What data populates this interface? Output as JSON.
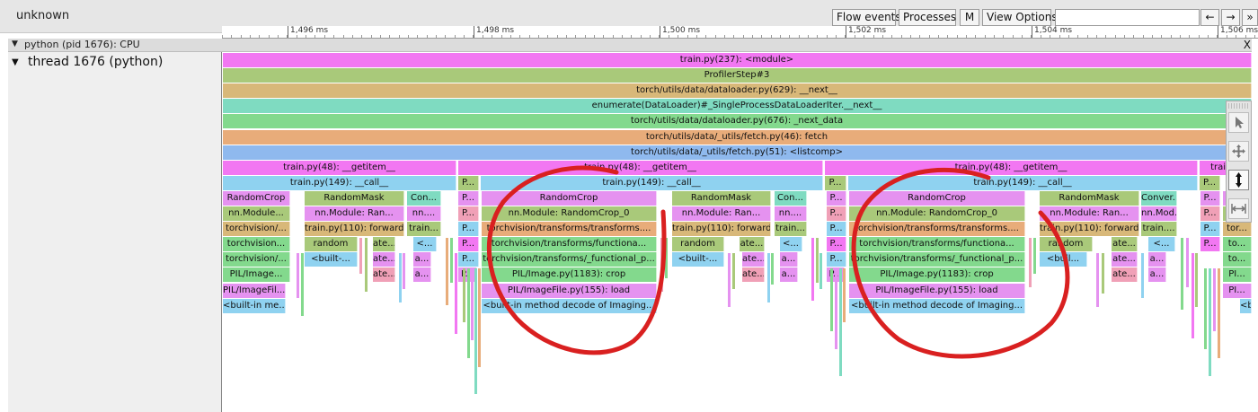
{
  "app_title": "unknown",
  "toolbar": {
    "flow_events": "Flow events",
    "processes": "Processes",
    "m": "M",
    "view_options": "View Options",
    "search_placeholder": "",
    "prev": "←",
    "next": "→",
    "more": "»"
  },
  "ruler": {
    "ticks": [
      {
        "label": "1,496 ms",
        "value": 1496
      },
      {
        "label": "1,498 ms",
        "value": 1498
      },
      {
        "label": "1,500 ms",
        "value": 1500
      },
      {
        "label": "1,502 ms",
        "value": 1502
      },
      {
        "label": "1,504 ms",
        "value": 1504
      },
      {
        "label": "1,506 ms",
        "value": 1506
      }
    ]
  },
  "process": {
    "toggle": "▼",
    "label": "python (pid 1676): CPU",
    "close": "X"
  },
  "thread": {
    "toggle": "▼",
    "label": "thread 1676 (python)"
  },
  "colors": {
    "magenta": "#f277f2",
    "olive": "#a9c97a",
    "tan": "#d8b879",
    "teal": "#7fdbc1",
    "green": "#83d98d",
    "orange": "#e8ac7a",
    "blue": "#8fb9ee",
    "cyan": "#8fd2f0",
    "violet": "#e592f0",
    "pink": "#f0a0b7",
    "annotation": "#d92020"
  },
  "slices": [
    {
      "row": 0,
      "from": 0,
      "to": 1145,
      "c": "magenta",
      "t": "train.py(237): <module>"
    },
    {
      "row": 1,
      "from": 0,
      "to": 1145,
      "c": "olive",
      "t": "ProfilerStep#3"
    },
    {
      "row": 2,
      "from": 0,
      "to": 1145,
      "c": "tan",
      "t": "torch/utils/data/dataloader.py(629): __next__"
    },
    {
      "row": 3,
      "from": 0,
      "to": 1145,
      "c": "teal",
      "t": "enumerate(DataLoader)#_SingleProcessDataLoaderIter.__next__"
    },
    {
      "row": 4,
      "from": 0,
      "to": 1145,
      "c": "green",
      "t": "torch/utils/data/dataloader.py(676): _next_data"
    },
    {
      "row": 5,
      "from": 0,
      "to": 1145,
      "c": "orange",
      "t": "torch/utils/data/_utils/fetch.py(46): fetch"
    },
    {
      "row": 6,
      "from": 0,
      "to": 1145,
      "c": "blue",
      "t": "torch/utils/data/_utils/fetch.py(51): <listcomp>"
    },
    {
      "row": 7,
      "from": 0,
      "to": 260,
      "c": "magenta",
      "t": "train.py(48): __getitem__"
    },
    {
      "row": 7,
      "from": 262,
      "to": 668,
      "c": "magenta",
      "t": "train.py(48): __getitem__"
    },
    {
      "row": 7,
      "from": 670,
      "to": 1085,
      "c": "magenta",
      "t": "train.py(48): __getitem__"
    },
    {
      "row": 7,
      "from": 1087,
      "to": 1145,
      "c": "magenta",
      "t": "train.p"
    },
    {
      "row": 8,
      "from": 0,
      "to": 260,
      "c": "cyan",
      "t": "train.py(149): __call__"
    },
    {
      "row": 8,
      "from": 262,
      "to": 285,
      "c": "olive",
      "t": "P..."
    },
    {
      "row": 8,
      "from": 287,
      "to": 668,
      "c": "cyan",
      "t": "train.py(149): __call__"
    },
    {
      "row": 8,
      "from": 670,
      "to": 694,
      "c": "olive",
      "t": "P..."
    },
    {
      "row": 8,
      "from": 696,
      "to": 1085,
      "c": "cyan",
      "t": "train.py(149): __call__"
    },
    {
      "row": 8,
      "from": 1087,
      "to": 1110,
      "c": "olive",
      "t": "P..."
    },
    {
      "row": 9,
      "from": 0,
      "to": 75,
      "c": "violet",
      "t": "RandomCrop"
    },
    {
      "row": 9,
      "from": 91,
      "to": 202,
      "c": "olive",
      "t": "RandomMask"
    },
    {
      "row": 9,
      "from": 205,
      "to": 243,
      "c": "teal",
      "t": "Con..."
    },
    {
      "row": 9,
      "from": 262,
      "to": 285,
      "c": "violet",
      "t": "P..."
    },
    {
      "row": 9,
      "from": 288,
      "to": 483,
      "c": "violet",
      "t": "RandomCrop"
    },
    {
      "row": 9,
      "from": 500,
      "to": 610,
      "c": "olive",
      "t": "RandomMask"
    },
    {
      "row": 9,
      "from": 614,
      "to": 650,
      "c": "teal",
      "t": "Con..."
    },
    {
      "row": 9,
      "from": 672,
      "to": 694,
      "c": "violet",
      "t": "P..."
    },
    {
      "row": 9,
      "from": 697,
      "to": 893,
      "c": "violet",
      "t": "RandomCrop"
    },
    {
      "row": 9,
      "from": 909,
      "to": 1020,
      "c": "olive",
      "t": "RandomMask"
    },
    {
      "row": 9,
      "from": 1022,
      "to": 1062,
      "c": "teal",
      "t": "Conver..."
    },
    {
      "row": 9,
      "from": 1088,
      "to": 1110,
      "c": "violet",
      "t": "P..."
    },
    {
      "row": 9,
      "from": 1113,
      "to": 1145,
      "c": "violet",
      "t": "Ra..."
    },
    {
      "row": 10,
      "from": 0,
      "to": 75,
      "c": "olive",
      "t": "nn.Module..."
    },
    {
      "row": 10,
      "from": 91,
      "to": 202,
      "c": "violet",
      "t": "nn.Module: Ran..."
    },
    {
      "row": 10,
      "from": 205,
      "to": 243,
      "c": "violet",
      "t": "nn...."
    },
    {
      "row": 10,
      "from": 262,
      "to": 285,
      "c": "pink",
      "t": "P..."
    },
    {
      "row": 10,
      "from": 288,
      "to": 483,
      "c": "olive",
      "t": "nn.Module: RandomCrop_0"
    },
    {
      "row": 10,
      "from": 500,
      "to": 610,
      "c": "violet",
      "t": "nn.Module: Ran..."
    },
    {
      "row": 10,
      "from": 614,
      "to": 650,
      "c": "violet",
      "t": "nn...."
    },
    {
      "row": 10,
      "from": 672,
      "to": 694,
      "c": "pink",
      "t": "P..."
    },
    {
      "row": 10,
      "from": 697,
      "to": 893,
      "c": "olive",
      "t": "nn.Module: RandomCrop_0"
    },
    {
      "row": 10,
      "from": 909,
      "to": 1020,
      "c": "violet",
      "t": "nn.Module: Ran..."
    },
    {
      "row": 10,
      "from": 1022,
      "to": 1062,
      "c": "violet",
      "t": "nn.Mod..."
    },
    {
      "row": 10,
      "from": 1088,
      "to": 1110,
      "c": "pink",
      "t": "P..."
    },
    {
      "row": 10,
      "from": 1113,
      "to": 1145,
      "c": "olive",
      "t": "nn..."
    },
    {
      "row": 11,
      "from": 0,
      "to": 75,
      "c": "tan",
      "t": "torchvision/..."
    },
    {
      "row": 11,
      "from": 91,
      "to": 202,
      "c": "tan",
      "t": "train.py(110): forward"
    },
    {
      "row": 11,
      "from": 205,
      "to": 243,
      "c": "olive",
      "t": "train..."
    },
    {
      "row": 11,
      "from": 262,
      "to": 285,
      "c": "cyan",
      "t": "P..."
    },
    {
      "row": 11,
      "from": 288,
      "to": 483,
      "c": "orange",
      "t": "torchvision/transforms/transforms...."
    },
    {
      "row": 11,
      "from": 500,
      "to": 610,
      "c": "tan",
      "t": "train.py(110): forward"
    },
    {
      "row": 11,
      "from": 614,
      "to": 650,
      "c": "olive",
      "t": "train..."
    },
    {
      "row": 11,
      "from": 672,
      "to": 694,
      "c": "cyan",
      "t": "P..."
    },
    {
      "row": 11,
      "from": 697,
      "to": 893,
      "c": "orange",
      "t": "torchvision/transforms/transforms...."
    },
    {
      "row": 11,
      "from": 909,
      "to": 1020,
      "c": "tan",
      "t": "train.py(110): forward"
    },
    {
      "row": 11,
      "from": 1022,
      "to": 1062,
      "c": "olive",
      "t": "train...."
    },
    {
      "row": 11,
      "from": 1088,
      "to": 1110,
      "c": "cyan",
      "t": "P..."
    },
    {
      "row": 11,
      "from": 1113,
      "to": 1145,
      "c": "tan",
      "t": "tor..."
    },
    {
      "row": 12,
      "from": 0,
      "to": 75,
      "c": "green",
      "t": "torchvision..."
    },
    {
      "row": 12,
      "from": 91,
      "to": 150,
      "c": "olive",
      "t": "random"
    },
    {
      "row": 12,
      "from": 167,
      "to": 192,
      "c": "olive",
      "t": "ate..."
    },
    {
      "row": 12,
      "from": 212,
      "to": 238,
      "c": "cyan",
      "t": "<..."
    },
    {
      "row": 12,
      "from": 262,
      "to": 285,
      "c": "magenta",
      "t": "P..."
    },
    {
      "row": 12,
      "from": 288,
      "to": 483,
      "c": "green",
      "t": "torchvision/transforms/functiona..."
    },
    {
      "row": 12,
      "from": 500,
      "to": 558,
      "c": "olive",
      "t": "random"
    },
    {
      "row": 12,
      "from": 575,
      "to": 603,
      "c": "olive",
      "t": "ate..."
    },
    {
      "row": 12,
      "from": 620,
      "to": 645,
      "c": "cyan",
      "t": "<..."
    },
    {
      "row": 12,
      "from": 672,
      "to": 694,
      "c": "magenta",
      "t": "P..."
    },
    {
      "row": 12,
      "from": 697,
      "to": 893,
      "c": "green",
      "t": "torchvision/transforms/functiona..."
    },
    {
      "row": 12,
      "from": 909,
      "to": 968,
      "c": "olive",
      "t": "random"
    },
    {
      "row": 12,
      "from": 989,
      "to": 1018,
      "c": "olive",
      "t": "ate..."
    },
    {
      "row": 12,
      "from": 1030,
      "to": 1060,
      "c": "cyan",
      "t": "<..."
    },
    {
      "row": 12,
      "from": 1088,
      "to": 1110,
      "c": "magenta",
      "t": "P..."
    },
    {
      "row": 12,
      "from": 1113,
      "to": 1145,
      "c": "green",
      "t": "to..."
    },
    {
      "row": 13,
      "from": 0,
      "to": 75,
      "c": "green",
      "t": "torchvision/..."
    },
    {
      "row": 13,
      "from": 91,
      "to": 150,
      "c": "cyan",
      "t": "<built-..."
    },
    {
      "row": 13,
      "from": 167,
      "to": 192,
      "c": "violet",
      "t": "ate..."
    },
    {
      "row": 13,
      "from": 212,
      "to": 232,
      "c": "violet",
      "t": "a..."
    },
    {
      "row": 13,
      "from": 262,
      "to": 285,
      "c": "cyan",
      "t": "P..."
    },
    {
      "row": 13,
      "from": 288,
      "to": 483,
      "c": "green",
      "t": "torchvision/transforms/_functional_p..."
    },
    {
      "row": 13,
      "from": 500,
      "to": 558,
      "c": "cyan",
      "t": "<built-..."
    },
    {
      "row": 13,
      "from": 578,
      "to": 603,
      "c": "violet",
      "t": "ate..."
    },
    {
      "row": 13,
      "from": 620,
      "to": 640,
      "c": "violet",
      "t": "a..."
    },
    {
      "row": 13,
      "from": 672,
      "to": 694,
      "c": "cyan",
      "t": "P..."
    },
    {
      "row": 13,
      "from": 697,
      "to": 893,
      "c": "green",
      "t": "torchvision/transforms/_functional_p..."
    },
    {
      "row": 13,
      "from": 909,
      "to": 962,
      "c": "cyan",
      "t": "<buil..."
    },
    {
      "row": 13,
      "from": 989,
      "to": 1018,
      "c": "violet",
      "t": "ate..."
    },
    {
      "row": 13,
      "from": 1030,
      "to": 1050,
      "c": "violet",
      "t": "a..."
    },
    {
      "row": 13,
      "from": 1113,
      "to": 1145,
      "c": "green",
      "t": "to..."
    },
    {
      "row": 14,
      "from": 0,
      "to": 75,
      "c": "green",
      "t": "PIL/Image..."
    },
    {
      "row": 14,
      "from": 167,
      "to": 192,
      "c": "pink",
      "t": "ate..."
    },
    {
      "row": 14,
      "from": 212,
      "to": 232,
      "c": "violet",
      "t": "a..."
    },
    {
      "row": 14,
      "from": 262,
      "to": 283,
      "c": "violet",
      "t": "P..."
    },
    {
      "row": 14,
      "from": 288,
      "to": 483,
      "c": "green",
      "t": "PIL/Image.py(1183): crop"
    },
    {
      "row": 14,
      "from": 578,
      "to": 603,
      "c": "pink",
      "t": "ate..."
    },
    {
      "row": 14,
      "from": 620,
      "to": 640,
      "c": "violet",
      "t": "a..."
    },
    {
      "row": 14,
      "from": 672,
      "to": 692,
      "c": "violet",
      "t": "P..."
    },
    {
      "row": 14,
      "from": 697,
      "to": 893,
      "c": "green",
      "t": "PIL/Image.py(1183): crop"
    },
    {
      "row": 14,
      "from": 989,
      "to": 1018,
      "c": "pink",
      "t": "ate..."
    },
    {
      "row": 14,
      "from": 1030,
      "to": 1050,
      "c": "violet",
      "t": "a..."
    },
    {
      "row": 14,
      "from": 1113,
      "to": 1145,
      "c": "green",
      "t": "PI..."
    },
    {
      "row": 15,
      "from": 0,
      "to": 70,
      "c": "violet",
      "t": "PIL/ImageFil..."
    },
    {
      "row": 15,
      "from": 288,
      "to": 483,
      "c": "violet",
      "t": "PIL/ImageFile.py(155): load"
    },
    {
      "row": 15,
      "from": 697,
      "to": 893,
      "c": "violet",
      "t": "PIL/ImageFile.py(155): load"
    },
    {
      "row": 15,
      "from": 1113,
      "to": 1145,
      "c": "violet",
      "t": "PI..."
    },
    {
      "row": 16,
      "from": 0,
      "to": 70,
      "c": "cyan",
      "t": "<built-in me..."
    },
    {
      "row": 16,
      "from": 288,
      "to": 483,
      "c": "cyan",
      "t": "<built-in method decode of Imaging..."
    },
    {
      "row": 16,
      "from": 697,
      "to": 893,
      "c": "cyan",
      "t": "<built-in method decode of Imaging..."
    },
    {
      "row": 16,
      "from": 1132,
      "to": 1145,
      "c": "cyan",
      "t": "<b"
    }
  ],
  "stalactites": [
    {
      "x": 82,
      "top": 282,
      "h": 50,
      "c": "violet"
    },
    {
      "x": 87,
      "top": 282,
      "h": 70,
      "c": "green"
    },
    {
      "x": 152,
      "top": 265,
      "h": 40,
      "c": "pink"
    },
    {
      "x": 158,
      "top": 265,
      "h": 60,
      "c": "olive"
    },
    {
      "x": 196,
      "top": 282,
      "h": 55,
      "c": "cyan"
    },
    {
      "x": 200,
      "top": 282,
      "h": 40,
      "c": "violet"
    },
    {
      "x": 248,
      "top": 265,
      "h": 75,
      "c": "orange"
    },
    {
      "x": 253,
      "top": 265,
      "h": 50,
      "c": "green"
    },
    {
      "x": 258,
      "top": 282,
      "h": 90,
      "c": "magenta"
    },
    {
      "x": 267,
      "top": 299,
      "h": 60,
      "c": "olive"
    },
    {
      "x": 272,
      "top": 299,
      "h": 100,
      "c": "green"
    },
    {
      "x": 276,
      "top": 299,
      "h": 80,
      "c": "violet"
    },
    {
      "x": 280,
      "top": 299,
      "h": 140,
      "c": "teal"
    },
    {
      "x": 284,
      "top": 299,
      "h": 110,
      "c": "orange"
    },
    {
      "x": 487,
      "top": 265,
      "h": 60,
      "c": "pink"
    },
    {
      "x": 492,
      "top": 265,
      "h": 45,
      "c": "green"
    },
    {
      "x": 562,
      "top": 282,
      "h": 60,
      "c": "violet"
    },
    {
      "x": 567,
      "top": 282,
      "h": 40,
      "c": "olive"
    },
    {
      "x": 606,
      "top": 282,
      "h": 55,
      "c": "cyan"
    },
    {
      "x": 610,
      "top": 282,
      "h": 35,
      "c": "green"
    },
    {
      "x": 655,
      "top": 265,
      "h": 70,
      "c": "magenta"
    },
    {
      "x": 660,
      "top": 265,
      "h": 50,
      "c": "olive"
    },
    {
      "x": 664,
      "top": 282,
      "h": 40,
      "c": "teal"
    },
    {
      "x": 676,
      "top": 299,
      "h": 70,
      "c": "green"
    },
    {
      "x": 681,
      "top": 299,
      "h": 90,
      "c": "violet"
    },
    {
      "x": 686,
      "top": 299,
      "h": 120,
      "c": "teal"
    },
    {
      "x": 690,
      "top": 299,
      "h": 60,
      "c": "orange"
    },
    {
      "x": 897,
      "top": 265,
      "h": 55,
      "c": "pink"
    },
    {
      "x": 902,
      "top": 265,
      "h": 40,
      "c": "green"
    },
    {
      "x": 972,
      "top": 282,
      "h": 60,
      "c": "violet"
    },
    {
      "x": 978,
      "top": 282,
      "h": 45,
      "c": "olive"
    },
    {
      "x": 1022,
      "top": 282,
      "h": 50,
      "c": "cyan"
    },
    {
      "x": 1066,
      "top": 265,
      "h": 80,
      "c": "green"
    },
    {
      "x": 1072,
      "top": 265,
      "h": 55,
      "c": "violet"
    },
    {
      "x": 1078,
      "top": 282,
      "h": 95,
      "c": "magenta"
    },
    {
      "x": 1082,
      "top": 282,
      "h": 60,
      "c": "olive"
    },
    {
      "x": 1092,
      "top": 299,
      "h": 90,
      "c": "green"
    },
    {
      "x": 1097,
      "top": 299,
      "h": 120,
      "c": "teal"
    },
    {
      "x": 1102,
      "top": 299,
      "h": 70,
      "c": "violet"
    },
    {
      "x": 1107,
      "top": 299,
      "h": 100,
      "c": "orange"
    }
  ]
}
